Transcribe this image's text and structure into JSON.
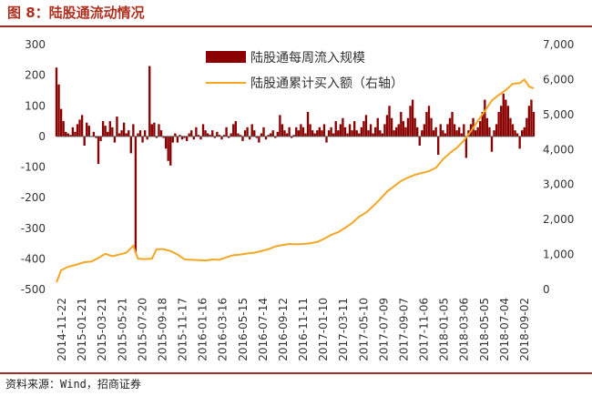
{
  "figure": {
    "title": "图 8：陆股通流动情况",
    "source": "资料来源：Wind，招商证券"
  },
  "colors": {
    "bars": "#8b0000",
    "line": "#f5a623",
    "accent": "#a02c2c"
  },
  "chart_data": {
    "type": "bar",
    "legend": [
      {
        "name": "陆股通每周流入规模",
        "kind": "bar"
      },
      {
        "name": "陆股通累计买入额（右轴）",
        "kind": "line"
      }
    ],
    "legend_position": "top-center",
    "grid": false,
    "y_left": {
      "ticks": [
        300,
        200,
        100,
        0,
        -100,
        -200,
        -300,
        -400,
        -500
      ],
      "range": [
        -500,
        300
      ]
    },
    "y_right": {
      "ticks": [
        "7,000",
        "6,000",
        "5,000",
        "4,000",
        "3,000",
        "2,000",
        "1,000",
        "0"
      ],
      "range": [
        0,
        7000
      ]
    },
    "x_start": "2014-11-22",
    "x_end": "2018-10-27",
    "x_tick_labels": [
      "2014-11-22",
      "2015-01-21",
      "2015-03-21",
      "2015-05-21",
      "2015-07-20",
      "2015-09-18",
      "2015-11-17",
      "2016-01-16",
      "2016-03-16",
      "2016-05-15",
      "2016-07-14",
      "2016-09-12",
      "2016-11-11",
      "2017-01-10",
      "2017-03-11",
      "2017-05-10",
      "2017-07-09",
      "2017-09-07",
      "2017-11-06",
      "2018-01-05",
      "2018-03-06",
      "2018-05-05",
      "2018-07-04",
      "2018-09-02"
    ],
    "series": [
      {
        "name": "陆股通每周流入规模",
        "kind": "bar",
        "axis": "left",
        "weekly_values": [
          225,
          170,
          90,
          50,
          15,
          10,
          5,
          30,
          15,
          40,
          55,
          70,
          -30,
          45,
          35,
          0,
          15,
          -5,
          -90,
          -15,
          50,
          35,
          15,
          50,
          30,
          -20,
          65,
          10,
          20,
          45,
          10,
          20,
          -55,
          40,
          -380,
          10,
          20,
          -20,
          20,
          -10,
          230,
          40,
          45,
          -5,
          40,
          20,
          -5,
          -40,
          -80,
          -95,
          -20,
          10,
          -20,
          5,
          -10,
          -5,
          -15,
          10,
          20,
          -10,
          30,
          5,
          -10,
          40,
          20,
          10,
          5,
          20,
          -5,
          15,
          5,
          -10,
          5,
          30,
          -5,
          10,
          40,
          50,
          10,
          5,
          -15,
          20,
          30,
          -10,
          40,
          20,
          -5,
          -20,
          10,
          30,
          -10,
          5,
          10,
          20,
          -5,
          15,
          70,
          40,
          20,
          10,
          30,
          -5,
          5,
          30,
          20,
          40,
          30,
          10,
          80,
          40,
          20,
          10,
          20,
          30,
          20,
          40,
          -20,
          20,
          30,
          10,
          50,
          20,
          40,
          60,
          30,
          10,
          40,
          20,
          50,
          20,
          10,
          30,
          50,
          70,
          20,
          40,
          10,
          30,
          60,
          20,
          10,
          40,
          70,
          100,
          60,
          20,
          30,
          40,
          80,
          50,
          30,
          60,
          100,
          120,
          60,
          30,
          -30,
          20,
          40,
          80,
          100,
          60,
          20,
          30,
          -60,
          40,
          20,
          10,
          40,
          60,
          80,
          40,
          20,
          30,
          10,
          40,
          -70,
          20,
          40,
          60,
          20,
          30,
          50,
          80,
          120,
          60,
          30,
          -50,
          20,
          40,
          80,
          100,
          140,
          120,
          100,
          60,
          40,
          20,
          10,
          -40,
          20,
          30,
          60,
          100,
          120,
          80,
          60,
          40,
          20,
          10,
          110,
          150,
          80,
          60,
          30,
          10,
          -20,
          20,
          110,
          100,
          70,
          40,
          20,
          10,
          -20,
          70,
          90,
          60,
          30,
          -20,
          -160,
          10
        ]
      },
      {
        "name": "陆股通累计买入额（右轴）",
        "kind": "line",
        "axis": "right",
        "points": [
          [
            "2014-11-22",
            200
          ],
          [
            "2014-12-06",
            550
          ],
          [
            "2014-12-27",
            650
          ],
          [
            "2015-01-17",
            700
          ],
          [
            "2015-02-14",
            780
          ],
          [
            "2015-03-07",
            800
          ],
          [
            "2015-03-28",
            900
          ],
          [
            "2015-04-18",
            1020
          ],
          [
            "2015-05-09",
            950
          ],
          [
            "2015-05-30",
            1000
          ],
          [
            "2015-06-20",
            1050
          ],
          [
            "2015-07-11",
            1250
          ],
          [
            "2015-07-25",
            880
          ],
          [
            "2015-08-15",
            870
          ],
          [
            "2015-09-05",
            880
          ],
          [
            "2015-09-19",
            1150
          ],
          [
            "2015-10-10",
            1150
          ],
          [
            "2015-10-31",
            1100
          ],
          [
            "2015-11-21",
            1000
          ],
          [
            "2015-12-12",
            860
          ],
          [
            "2016-01-02",
            850
          ],
          [
            "2016-01-23",
            840
          ],
          [
            "2016-02-13",
            830
          ],
          [
            "2016-03-05",
            860
          ],
          [
            "2016-03-26",
            850
          ],
          [
            "2016-04-16",
            920
          ],
          [
            "2016-05-07",
            980
          ],
          [
            "2016-05-28",
            1000
          ],
          [
            "2016-06-18",
            1030
          ],
          [
            "2016-07-09",
            1050
          ],
          [
            "2016-07-30",
            1100
          ],
          [
            "2016-08-20",
            1150
          ],
          [
            "2016-09-10",
            1230
          ],
          [
            "2016-10-01",
            1270
          ],
          [
            "2016-10-22",
            1300
          ],
          [
            "2016-11-12",
            1290
          ],
          [
            "2016-12-03",
            1300
          ],
          [
            "2016-12-24",
            1320
          ],
          [
            "2017-01-14",
            1360
          ],
          [
            "2017-02-04",
            1450
          ],
          [
            "2017-02-25",
            1560
          ],
          [
            "2017-03-18",
            1640
          ],
          [
            "2017-04-08",
            1760
          ],
          [
            "2017-04-29",
            1900
          ],
          [
            "2017-05-20",
            2080
          ],
          [
            "2017-06-10",
            2200
          ],
          [
            "2017-07-01",
            2380
          ],
          [
            "2017-07-22",
            2580
          ],
          [
            "2017-08-12",
            2800
          ],
          [
            "2017-09-02",
            2950
          ],
          [
            "2017-09-23",
            3100
          ],
          [
            "2017-10-14",
            3200
          ],
          [
            "2017-11-04",
            3280
          ],
          [
            "2017-11-25",
            3330
          ],
          [
            "2017-12-16",
            3380
          ],
          [
            "2018-01-06",
            3480
          ],
          [
            "2018-01-27",
            3720
          ],
          [
            "2018-02-17",
            3900
          ],
          [
            "2018-03-10",
            4050
          ],
          [
            "2018-03-31",
            4260
          ],
          [
            "2018-04-21",
            4520
          ],
          [
            "2018-05-12",
            4820
          ],
          [
            "2018-06-02",
            5100
          ],
          [
            "2018-06-23",
            5400
          ],
          [
            "2018-07-14",
            5560
          ],
          [
            "2018-08-04",
            5700
          ],
          [
            "2018-08-25",
            5880
          ],
          [
            "2018-09-15",
            5900
          ],
          [
            "2018-09-29",
            6000
          ],
          [
            "2018-10-13",
            5800
          ],
          [
            "2018-10-27",
            5750
          ]
        ]
      }
    ]
  }
}
